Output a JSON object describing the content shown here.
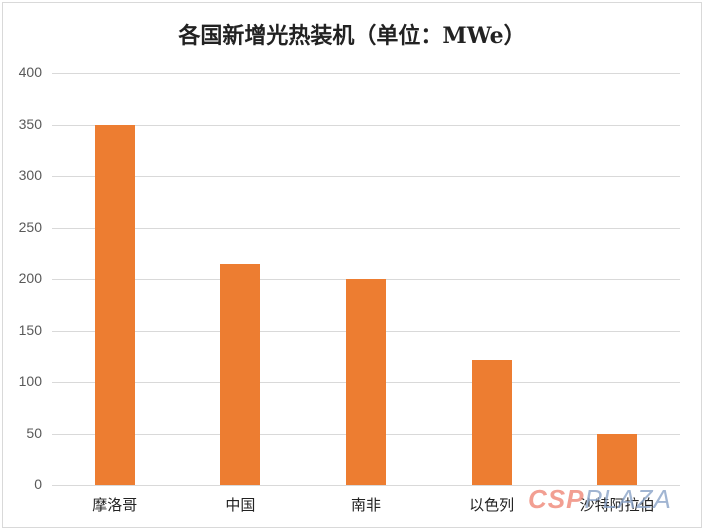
{
  "chart_data": {
    "type": "bar",
    "title": "各国新增光热装机（单位：MWe）",
    "categories": [
      "摩洛哥",
      "中国",
      "南非",
      "以色列",
      "沙特阿拉伯"
    ],
    "values": [
      350,
      215,
      200,
      121,
      50
    ],
    "xlabel": "",
    "ylabel": "",
    "ylim": [
      0,
      400
    ],
    "yticks": [
      "0",
      "50",
      "100",
      "150",
      "200",
      "250",
      "300",
      "350",
      "400"
    ],
    "grid": true,
    "legend": "none",
    "bar_color": "#ed7d31"
  },
  "watermark": {
    "part1": "CSP",
    "part2": "PLAZA"
  }
}
